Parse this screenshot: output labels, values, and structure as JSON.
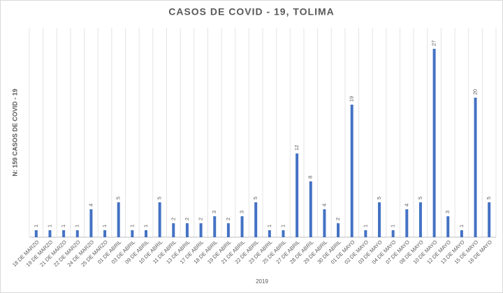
{
  "chart_data": {
    "type": "bar",
    "title": "CASOS DE COVID - 19, TOLIMA",
    "y_label": "N: 159 CASOS DE COVID - 19",
    "x_label": "2019",
    "categories": [
      "18 DE MARZO",
      "19 DE MARZO",
      "21 DE MARZO",
      "22 DE MARZO",
      "24 DE MARZO",
      "25 DE MARZO",
      "01 DE ABRIL",
      "03 DE ABRIL",
      "09 DE ABRIL",
      "10 DE ABRIL",
      "11 DE ABRIL",
      "13 DE ABRIL",
      "17 DE ABRIL",
      "18 DE ABRIL",
      "19 DE ABRIL",
      "21 DE ABRIL",
      "22 DE ABRIL",
      "23 DE ABRIL",
      "25 DE ABRIL",
      "27 DE ABRIL",
      "28 DE ABRIL",
      "29 DE ABRIL",
      "30 DE ABRIL",
      "01 DE MAYO",
      "02 DE MAYO",
      "03 DE MAYO",
      "04 DE MAYO",
      "07 DE MAYO",
      "08 DE MAYO",
      "10 DE MAYO",
      "12 DE MAYO",
      "13 DE MAYO",
      "15 DE MAYO",
      "16 DE MAYO"
    ],
    "values": [
      1,
      1,
      1,
      1,
      4,
      1,
      5,
      1,
      1,
      5,
      2,
      2,
      2,
      3,
      2,
      3,
      5,
      1,
      1,
      12,
      8,
      4,
      2,
      19,
      1,
      5,
      1,
      4,
      5,
      27,
      3,
      1,
      20,
      5
    ],
    "color": "#4472c4",
    "ylim": [
      0,
      30
    ],
    "data_labels": true
  }
}
